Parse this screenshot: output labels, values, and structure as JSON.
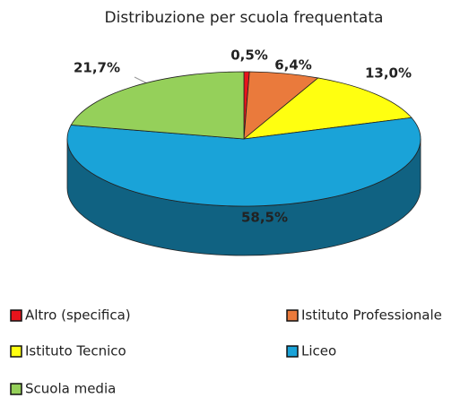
{
  "chart_data": {
    "type": "pie3d",
    "title": "Distribuzione per scuola frequentata",
    "categories": [
      "Altro (specifica)",
      "Istituto Professionale",
      "Istituto Tecnico",
      "Liceo",
      "Scuola media"
    ],
    "values": [
      0.5,
      6.4,
      13.0,
      58.5,
      21.7
    ],
    "value_labels": [
      "0,5%",
      "6,4%",
      "13,0%",
      "58,5%",
      "21,7%"
    ],
    "colors": [
      "#e8141c",
      "#ea7a3c",
      "#ffff10",
      "#1aa3d8",
      "#95d05a"
    ]
  }
}
